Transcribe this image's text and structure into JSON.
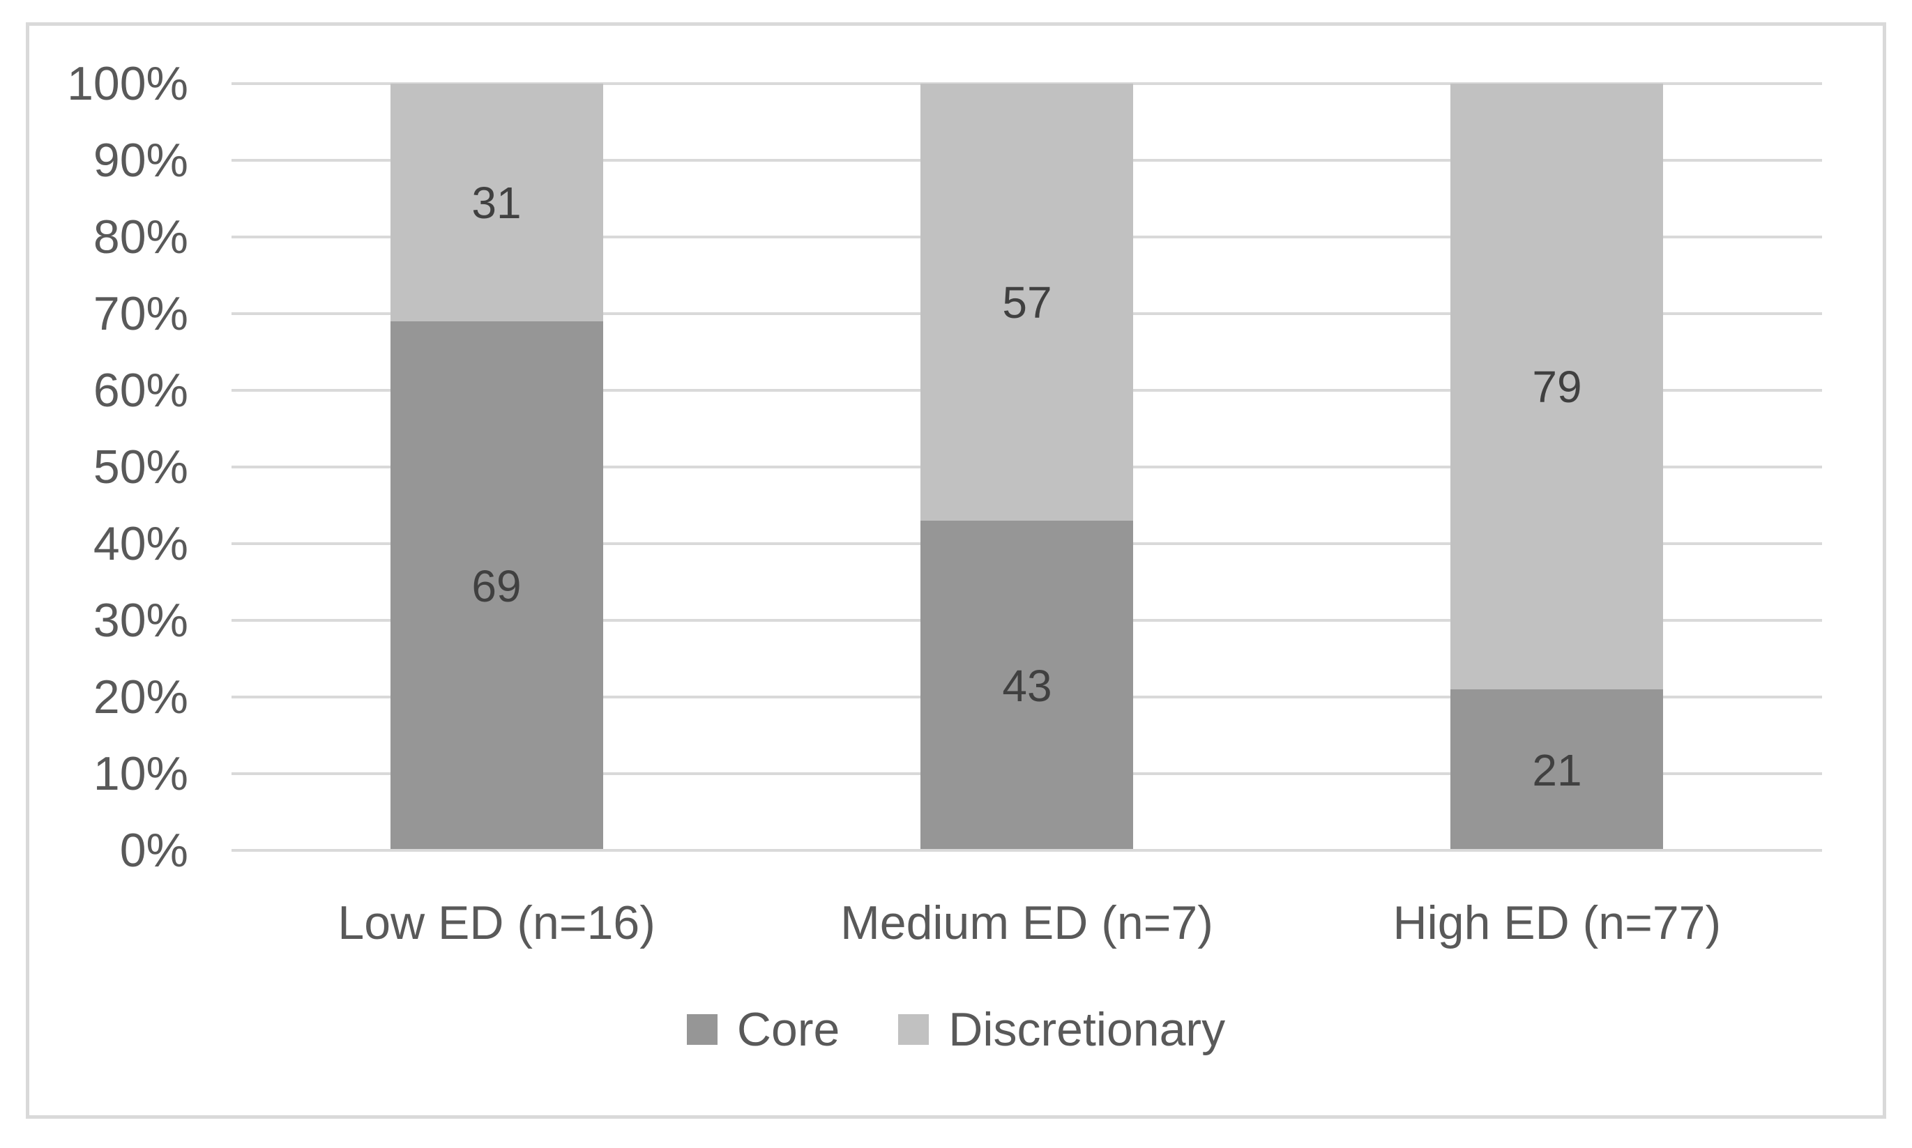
{
  "chart_data": {
    "type": "bar",
    "variant": "stacked-column-100",
    "title": "",
    "xlabel": "",
    "ylabel": "",
    "categories": [
      "Low ED (n=16)",
      "Medium ED (n=7)",
      "High ED (n=77)"
    ],
    "series": [
      {
        "name": "Core",
        "values": [
          69,
          43,
          21
        ],
        "color": "#969696"
      },
      {
        "name": "Discretionary",
        "values": [
          31,
          57,
          79
        ],
        "color": "#c1c1c1"
      }
    ],
    "y_axis": {
      "min": 0,
      "max": 100,
      "step": 10,
      "tick_labels": [
        "0%",
        "10%",
        "20%",
        "30%",
        "40%",
        "50%",
        "60%",
        "70%",
        "80%",
        "90%",
        "100%"
      ]
    },
    "grid": true,
    "legend_position": "bottom",
    "data_labels_shown": true,
    "colors": {
      "gridline": "#d9d9d9",
      "axis_line": "#d9d9d9",
      "chart_border": "#d9d9d9",
      "axis_text": "#595959",
      "data_label_text": "#404040",
      "background": "#ffffff"
    }
  }
}
